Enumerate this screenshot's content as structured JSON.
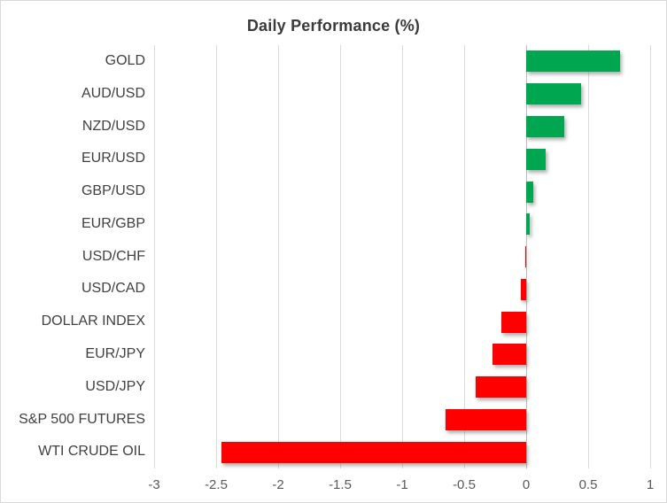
{
  "chart_data": {
    "type": "bar",
    "orientation": "horizontal",
    "title": "Daily Performance (%)",
    "categories": [
      "GOLD",
      "AUD/USD",
      "NZD/USD",
      "EUR/USD",
      "GBP/USD",
      "EUR/GBP",
      "USD/CHF",
      "USD/CAD",
      "DOLLAR INDEX",
      "EUR/JPY",
      "USD/JPY",
      "S&P 500 FUTURES",
      "WTI CRUDE OIL"
    ],
    "values": [
      0.76,
      0.44,
      0.31,
      0.16,
      0.06,
      0.03,
      -0.01,
      -0.04,
      -0.2,
      -0.27,
      -0.41,
      -0.65,
      -2.46
    ],
    "xlabel": "",
    "ylabel": "",
    "xlim": [
      -3,
      1
    ],
    "xticks": [
      -3,
      -2.5,
      -2,
      -1.5,
      -1,
      -0.5,
      0,
      0.5,
      1
    ],
    "xtick_labels": [
      "-3",
      "-2.5",
      "-2",
      "-1.5",
      "-1",
      "-0.5",
      "0",
      "0.5",
      "1"
    ],
    "grid": true,
    "legend": "none",
    "colors": {
      "positive": "#00A650",
      "negative": "#FF0000",
      "gridline": "#d9d9d9",
      "zero_line": "#bfbfbf",
      "title_text": "#3b3b3b",
      "category_text": "#404040",
      "tick_text": "#595959"
    }
  }
}
